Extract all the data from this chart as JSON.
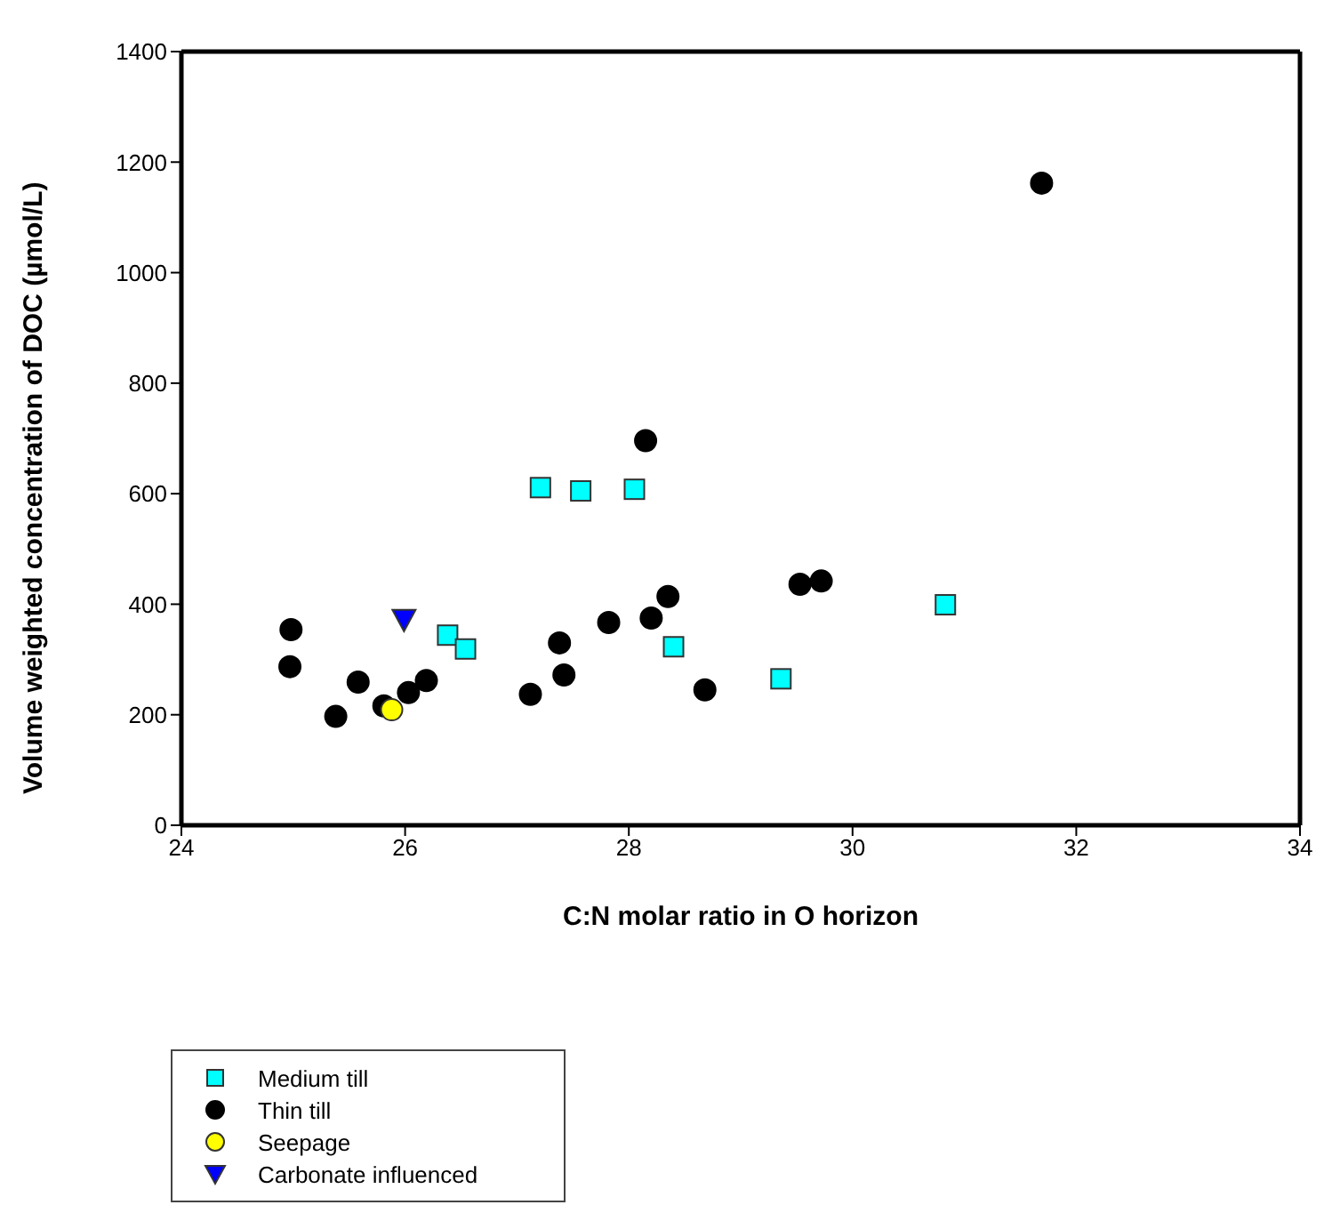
{
  "chart_data": {
    "type": "scatter",
    "xlabel": "C:N molar ratio in O horizon",
    "ylabel": "Volume weighted concentration of DOC (µmol/L)",
    "xlim": [
      24,
      34
    ],
    "xticks": [
      24,
      26,
      28,
      30,
      32,
      34
    ],
    "ylim": [
      0,
      1400
    ],
    "yticks": [
      0,
      200,
      400,
      600,
      800,
      1000,
      1200,
      1400
    ],
    "legend": "bottom left",
    "series": [
      {
        "name": "Medium till",
        "color": "#00ffff",
        "marker": "square",
        "x": [
          27.21,
          27.57,
          28.05,
          26.38,
          26.54,
          28.4,
          29.36,
          30.83
        ],
        "values": [
          611,
          605,
          608,
          344,
          319,
          323,
          265,
          399
        ]
      },
      {
        "name": "Thin till",
        "color": "#000000",
        "marker": "circle",
        "x": [
          31.69,
          28.15,
          24.98,
          24.97,
          25.38,
          25.58,
          25.81,
          26.03,
          26.19,
          27.12,
          27.38,
          27.42,
          27.82,
          28.2,
          28.35,
          28.68,
          29.53,
          29.72
        ],
        "values": [
          1162,
          696,
          354,
          287,
          197,
          259,
          216,
          240,
          262,
          237,
          330,
          272,
          367,
          375,
          414,
          245,
          436,
          442
        ]
      },
      {
        "name": "Seepage",
        "color": "#ffff00",
        "marker": "circle",
        "x": [
          25.88
        ],
        "values": [
          209
        ]
      },
      {
        "name": "Carbonate influenced",
        "color": "#0000ff",
        "marker": "triangle-down",
        "x": [
          25.99
        ],
        "values": [
          372
        ]
      }
    ]
  }
}
